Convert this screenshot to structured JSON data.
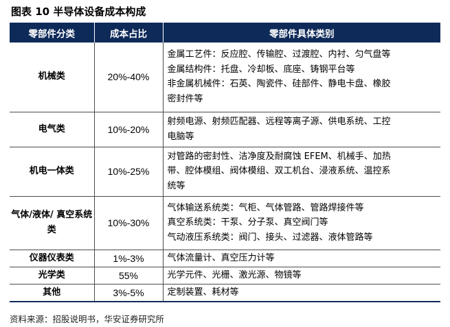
{
  "figure": {
    "title": "图表 10  半导体设备成本构成"
  },
  "table": {
    "headers": [
      "零部件分类",
      "成本占比",
      "零部件具体类别"
    ],
    "rows": [
      {
        "category_lines": [
          "机械类"
        ],
        "share": "20%-40%",
        "detail_lines": [
          "金属工艺件：反应腔、传输腔、过渡腔、内衬、匀气盘等",
          "金属结构件：托盘、冷却板、底座、铸钢平台等",
          "非金属机械件：石英、陶瓷件、硅部件、静电卡盘、橡胶",
          "密封件等"
        ]
      },
      {
        "category_lines": [
          "电气类"
        ],
        "share": "10%-20%",
        "detail_lines": [
          "射频电源、射频匹配器、远程等离子源、供电系统、工控",
          "电脑等"
        ]
      },
      {
        "category_lines": [
          "机电一体类"
        ],
        "share": "10%-25%",
        "detail_lines": [
          "对管路的密封性、洁净度及耐腐蚀 EFEM、机械手、加热",
          "带、腔体模组、阀体模组、双工机台、浸液系统、温控系",
          "统等"
        ]
      },
      {
        "category_lines": [
          "气体/液体/",
          "真空系统类"
        ],
        "share": "10%-30%",
        "detail_lines": [
          "气体输送系统类：气柜、气体管路、管路焊接件等",
          "真空系统类：干泵、分子泵、真空阀门等",
          "气动液压系统类：阀门、接头、过滤器、液体管路等"
        ]
      },
      {
        "category_lines": [
          "仪器仪表类"
        ],
        "share": "1%-3%",
        "detail_lines": [
          "气体流量计、真空压力计等"
        ]
      },
      {
        "category_lines": [
          "光学类"
        ],
        "share": "55%",
        "detail_lines": [
          "光学元件、光栅、激光源、物镜等"
        ]
      },
      {
        "category_lines": [
          "其他"
        ],
        "share": "3%-5%",
        "detail_lines": [
          "定制装置、耗材等"
        ]
      }
    ]
  },
  "footer": {
    "source": "资料来源：招股说明书，华安证券研究所"
  }
}
